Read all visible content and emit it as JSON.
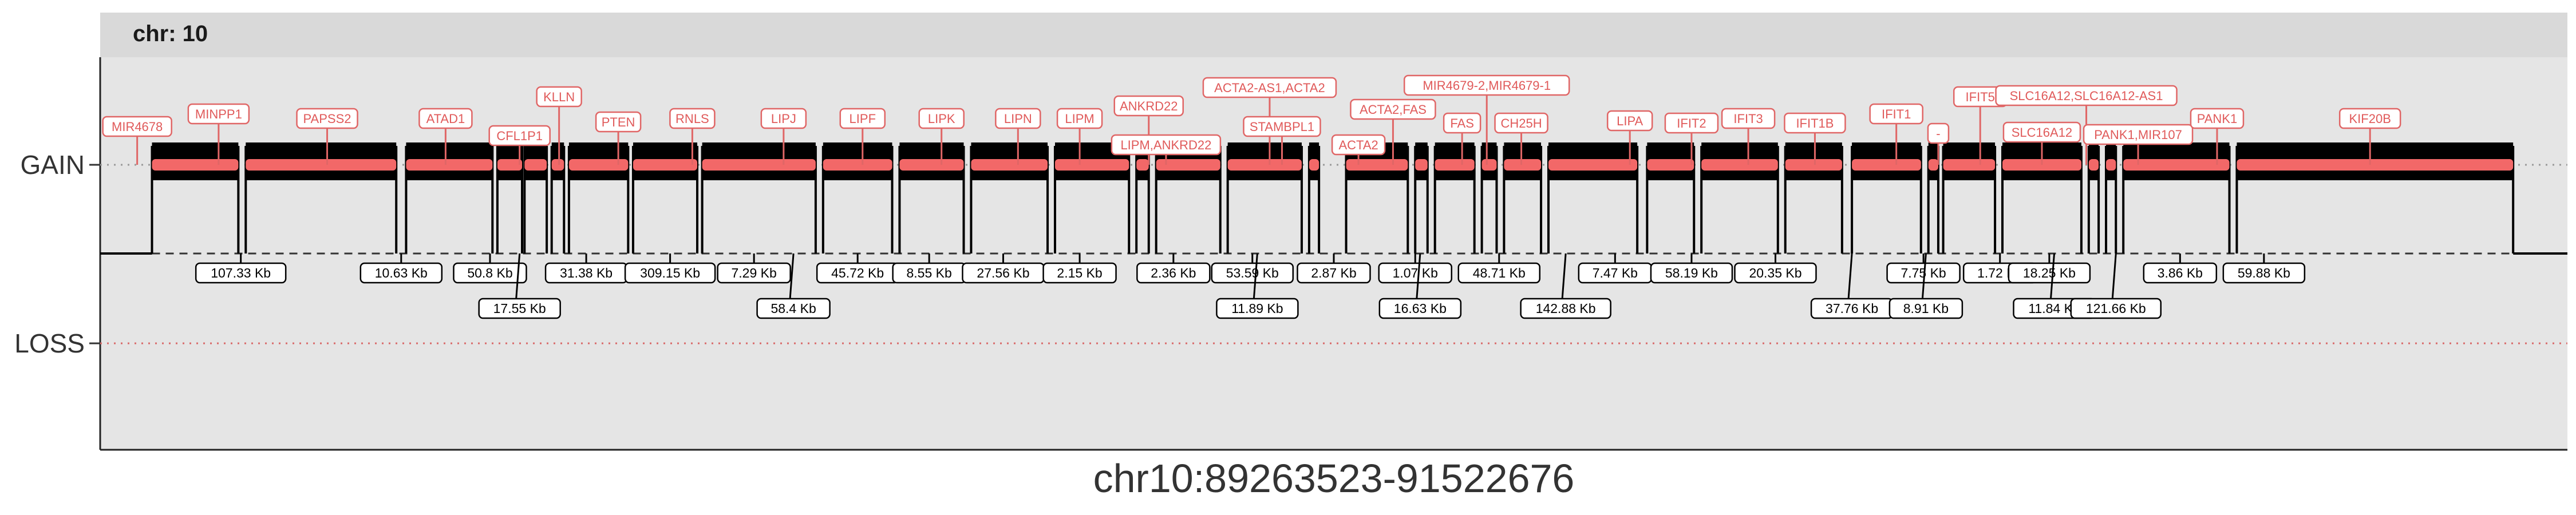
{
  "chart_data": {
    "type": "genome_track",
    "facet_label": "chr: 10",
    "xlabel": "chr10:89263523-91522676",
    "y_categories": [
      "GAIN",
      "LOSS"
    ],
    "segment_color": "#f26868",
    "grid": true,
    "gene_labels": [
      {
        "name": "MIR4678",
        "pos": 0.015
      },
      {
        "name": "MINPP1",
        "pos": 0.048
      },
      {
        "name": "PAPSS2",
        "pos": 0.092
      },
      {
        "name": "ATAD1",
        "pos": 0.14
      },
      {
        "name": "CFL1P1",
        "pos": 0.17
      },
      {
        "name": "KLLN",
        "pos": 0.186
      },
      {
        "name": "PTEN",
        "pos": 0.21
      },
      {
        "name": "RNLS",
        "pos": 0.24
      },
      {
        "name": "LIPJ",
        "pos": 0.277
      },
      {
        "name": "LIPF",
        "pos": 0.309
      },
      {
        "name": "LIPK",
        "pos": 0.341
      },
      {
        "name": "LIPN",
        "pos": 0.372
      },
      {
        "name": "LIPM",
        "pos": 0.397
      },
      {
        "name": "ANKRD22",
        "pos": 0.425
      },
      {
        "name": "LIPM,ANKRD22",
        "pos": 0.432
      },
      {
        "name": "ACTA2-AS1,ACTA2",
        "pos": 0.474
      },
      {
        "name": "STAMBPL1",
        "pos": 0.479
      },
      {
        "name": "ACTA2",
        "pos": 0.51
      },
      {
        "name": "ACTA2,FAS",
        "pos": 0.524
      },
      {
        "name": "MIR4679-2,MIR4679-1",
        "pos": 0.562
      },
      {
        "name": "FAS",
        "pos": 0.552
      },
      {
        "name": "CH25H",
        "pos": 0.576
      },
      {
        "name": "LIPA",
        "pos": 0.62
      },
      {
        "name": "IFIT2",
        "pos": 0.645
      },
      {
        "name": "IFIT3",
        "pos": 0.668
      },
      {
        "name": "IFIT1B",
        "pos": 0.695
      },
      {
        "name": "IFIT1",
        "pos": 0.728
      },
      {
        "name": "-",
        "pos": 0.745
      },
      {
        "name": "IFIT5",
        "pos": 0.762
      },
      {
        "name": "SLC16A12,SLC16A12-AS1",
        "pos": 0.805
      },
      {
        "name": "SLC16A12",
        "pos": 0.787
      },
      {
        "name": "PANK1,MIR107",
        "pos": 0.826
      },
      {
        "name": "PANK1",
        "pos": 0.858
      },
      {
        "name": "KIF20B",
        "pos": 0.92
      }
    ],
    "segments": [
      [
        0.021,
        0.056
      ],
      [
        0.059,
        0.12
      ],
      [
        0.124,
        0.159
      ],
      [
        0.161,
        0.171
      ],
      [
        0.172,
        0.181
      ],
      [
        0.183,
        0.188
      ],
      [
        0.19,
        0.214
      ],
      [
        0.216,
        0.242
      ],
      [
        0.244,
        0.29
      ],
      [
        0.293,
        0.321
      ],
      [
        0.324,
        0.35
      ],
      [
        0.353,
        0.384
      ],
      [
        0.387,
        0.417
      ],
      [
        0.42,
        0.425
      ],
      [
        0.428,
        0.454
      ],
      [
        0.457,
        0.487
      ],
      [
        0.49,
        0.494
      ],
      [
        0.505,
        0.53
      ],
      [
        0.533,
        0.538
      ],
      [
        0.541,
        0.557
      ],
      [
        0.56,
        0.566
      ],
      [
        0.569,
        0.584
      ],
      [
        0.587,
        0.623
      ],
      [
        0.627,
        0.646
      ],
      [
        0.649,
        0.68
      ],
      [
        0.683,
        0.706
      ],
      [
        0.71,
        0.738
      ],
      [
        0.741,
        0.745
      ],
      [
        0.747,
        0.768
      ],
      [
        0.771,
        0.803
      ],
      [
        0.806,
        0.81
      ],
      [
        0.813,
        0.817
      ],
      [
        0.82,
        0.863
      ],
      [
        0.866,
        0.978
      ]
    ],
    "gaps": [
      {
        "label": "107.33 Kb",
        "pos": 0.057
      },
      {
        "label": "10.63 Kb",
        "pos": 0.122
      },
      {
        "label": "50.8 Kb",
        "pos": 0.158
      },
      {
        "label": "17.55 Kb",
        "pos": 0.17
      },
      {
        "label": "31.38 Kb",
        "pos": 0.197
      },
      {
        "label": "309.15 Kb",
        "pos": 0.231
      },
      {
        "label": "7.29 Kb",
        "pos": 0.265
      },
      {
        "label": "58.4 Kb",
        "pos": 0.281
      },
      {
        "label": "45.72 Kb",
        "pos": 0.307
      },
      {
        "label": "8.55 Kb",
        "pos": 0.336
      },
      {
        "label": "27.56 Kb",
        "pos": 0.366
      },
      {
        "label": "2.15 Kb",
        "pos": 0.397
      },
      {
        "label": "2.36 Kb",
        "pos": 0.435
      },
      {
        "label": "53.59 Kb",
        "pos": 0.467
      },
      {
        "label": "11.89 Kb",
        "pos": 0.469
      },
      {
        "label": "2.87 Kb",
        "pos": 0.5
      },
      {
        "label": "1.07 Kb",
        "pos": 0.533
      },
      {
        "label": "16.63 Kb",
        "pos": 0.535
      },
      {
        "label": "48.71 Kb",
        "pos": 0.567
      },
      {
        "label": "142.88 Kb",
        "pos": 0.594
      },
      {
        "label": "7.47 Kb",
        "pos": 0.614
      },
      {
        "label": "58.19 Kb",
        "pos": 0.645
      },
      {
        "label": "20.35 Kb",
        "pos": 0.679
      },
      {
        "label": "37.76 Kb",
        "pos": 0.71
      },
      {
        "label": "7.75 Kb",
        "pos": 0.739
      },
      {
        "label": "8.91 Kb",
        "pos": 0.74
      },
      {
        "label": "1.72 Kb",
        "pos": 0.77
      },
      {
        "label": "18.25 Kb",
        "pos": 0.79
      },
      {
        "label": "11.84 Kb",
        "pos": 0.792
      },
      {
        "label": "121.66 Kb",
        "pos": 0.817
      },
      {
        "label": "3.86 Kb",
        "pos": 0.843
      },
      {
        "label": "59.88 Kb",
        "pos": 0.877
      }
    ]
  }
}
